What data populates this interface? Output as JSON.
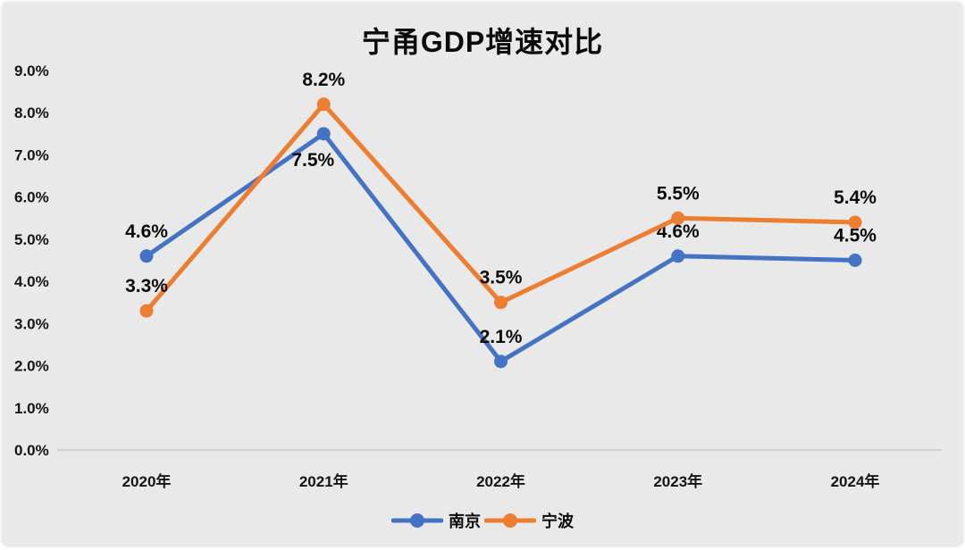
{
  "title": "宁甬GDP增速对比",
  "colors": {
    "background": "#e9e9e9",
    "axis_line": "#d2d2d2",
    "text": "#0a0a0a",
    "series_nanjing": "#4472C4",
    "series_ningbo": "#ED7D31"
  },
  "chart_data": {
    "type": "line",
    "title": "宁甬GDP增速对比",
    "categories": [
      "2020年",
      "2021年",
      "2022年",
      "2023年",
      "2024年"
    ],
    "series": [
      {
        "name": "南京",
        "color": "#4472C4",
        "values": [
          4.6,
          7.5,
          2.1,
          4.6,
          4.5
        ],
        "labels": [
          "4.6%",
          "7.5%",
          "2.1%",
          "4.6%",
          "4.5%"
        ],
        "label_positions": [
          "above",
          "below",
          "above",
          "above",
          "above"
        ]
      },
      {
        "name": "宁波",
        "color": "#ED7D31",
        "values": [
          3.3,
          8.2,
          3.5,
          5.5,
          5.4
        ],
        "labels": [
          "3.3%",
          "8.2%",
          "3.5%",
          "5.5%",
          "5.4%"
        ],
        "label_positions": [
          "above",
          "above",
          "above",
          "above",
          "above"
        ]
      }
    ],
    "xlabel": "",
    "ylabel": "",
    "ylim": [
      0,
      9
    ],
    "ytick_step": 1,
    "ytick_labels": [
      "0.0%",
      "1.0%",
      "2.0%",
      "3.0%",
      "4.0%",
      "5.0%",
      "6.0%",
      "7.0%",
      "8.0%",
      "9.0%"
    ],
    "grid": false,
    "legend_position": "bottom",
    "marker": "circle"
  }
}
